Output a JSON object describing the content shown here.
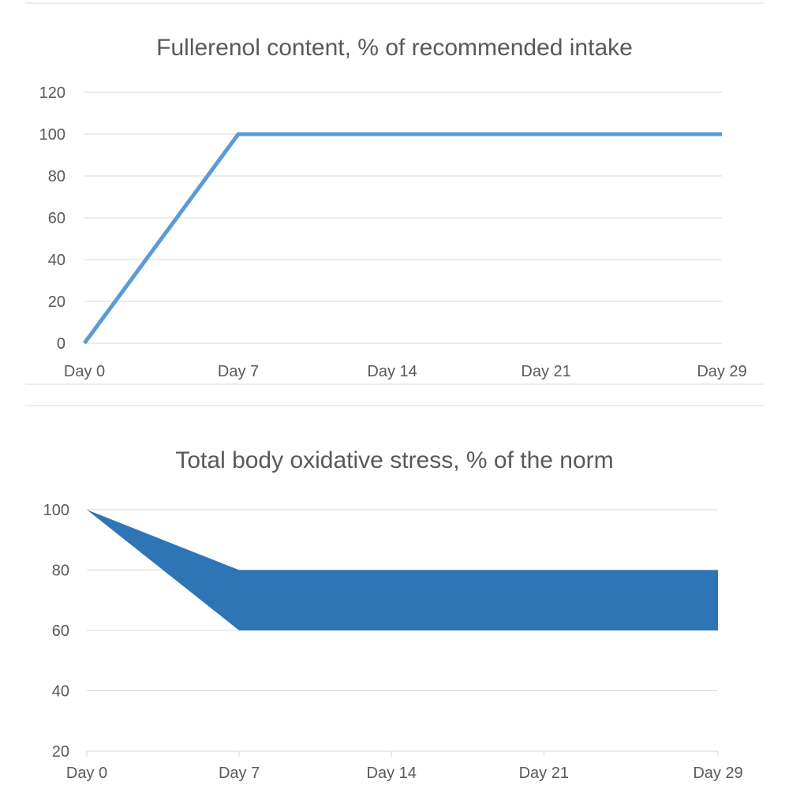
{
  "chart_data": [
    {
      "type": "line",
      "title": "Fullerenol content, % of recommended intake",
      "categories": [
        "Day 0",
        "Day 7",
        "Day 14",
        "Day 21",
        "Day 29"
      ],
      "y_ticks": [
        "0",
        "20",
        "40",
        "60",
        "80",
        "100",
        "120"
      ],
      "ylim": [
        0,
        120
      ],
      "grid": true,
      "legend": "none",
      "series": [
        {
          "x": [
            0,
            7,
            29
          ],
          "values": [
            0,
            100,
            100
          ]
        }
      ],
      "colors": {
        "line": "#5b9bd5"
      }
    },
    {
      "type": "area",
      "title": "Total body oxidative stress, % of the norm",
      "categories": [
        "Day 0",
        "Day 7",
        "Day 14",
        "Day 21",
        "Day 29"
      ],
      "y_ticks": [
        "20",
        "40",
        "60",
        "80",
        "100"
      ],
      "ylim": [
        20,
        100
      ],
      "grid": true,
      "legend": "none",
      "series": [
        {
          "x": [
            0,
            7,
            29
          ],
          "upper": [
            100,
            80,
            80
          ],
          "lower": [
            100,
            60,
            60
          ]
        }
      ],
      "colors": {
        "fill": "#2e75b6"
      }
    }
  ]
}
